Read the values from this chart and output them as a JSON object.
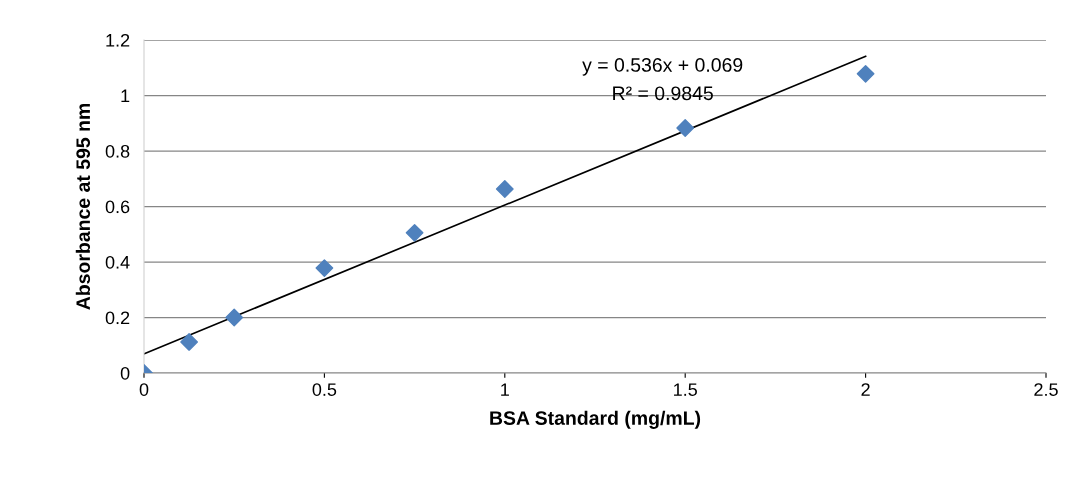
{
  "chart_data": {
    "type": "scatter",
    "xlabel": "BSA Standard (mg/mL)",
    "ylabel": "Absorbance at 595 nm",
    "series": [
      {
        "color": "#4f81bd",
        "marker": "diamond",
        "x": [
          0,
          0.125,
          0.25,
          0.5,
          0.75,
          1,
          1.5,
          2
        ],
        "values": [
          0,
          0.112,
          0.2,
          0.378,
          0.505,
          0.663,
          0.883,
          1.078
        ]
      },
      {
        "type": "line",
        "color": "#000000",
        "marker": "none",
        "line_style": "solid",
        "x": [
          0,
          2
        ],
        "values": [
          0.069,
          1.141
        ]
      }
    ],
    "annotations": [
      "y = 0.536x + 0.069",
      "R² = 0.9845"
    ],
    "xlim": [
      0,
      2.5
    ],
    "xticks": [
      0,
      0.5,
      1,
      1.5,
      2,
      2.5
    ],
    "ylim": [
      0,
      1.2
    ],
    "yticks": [
      0,
      0.2,
      0.4,
      0.6,
      0.8,
      1,
      1.2
    ],
    "grid": "y",
    "legend": false
  }
}
